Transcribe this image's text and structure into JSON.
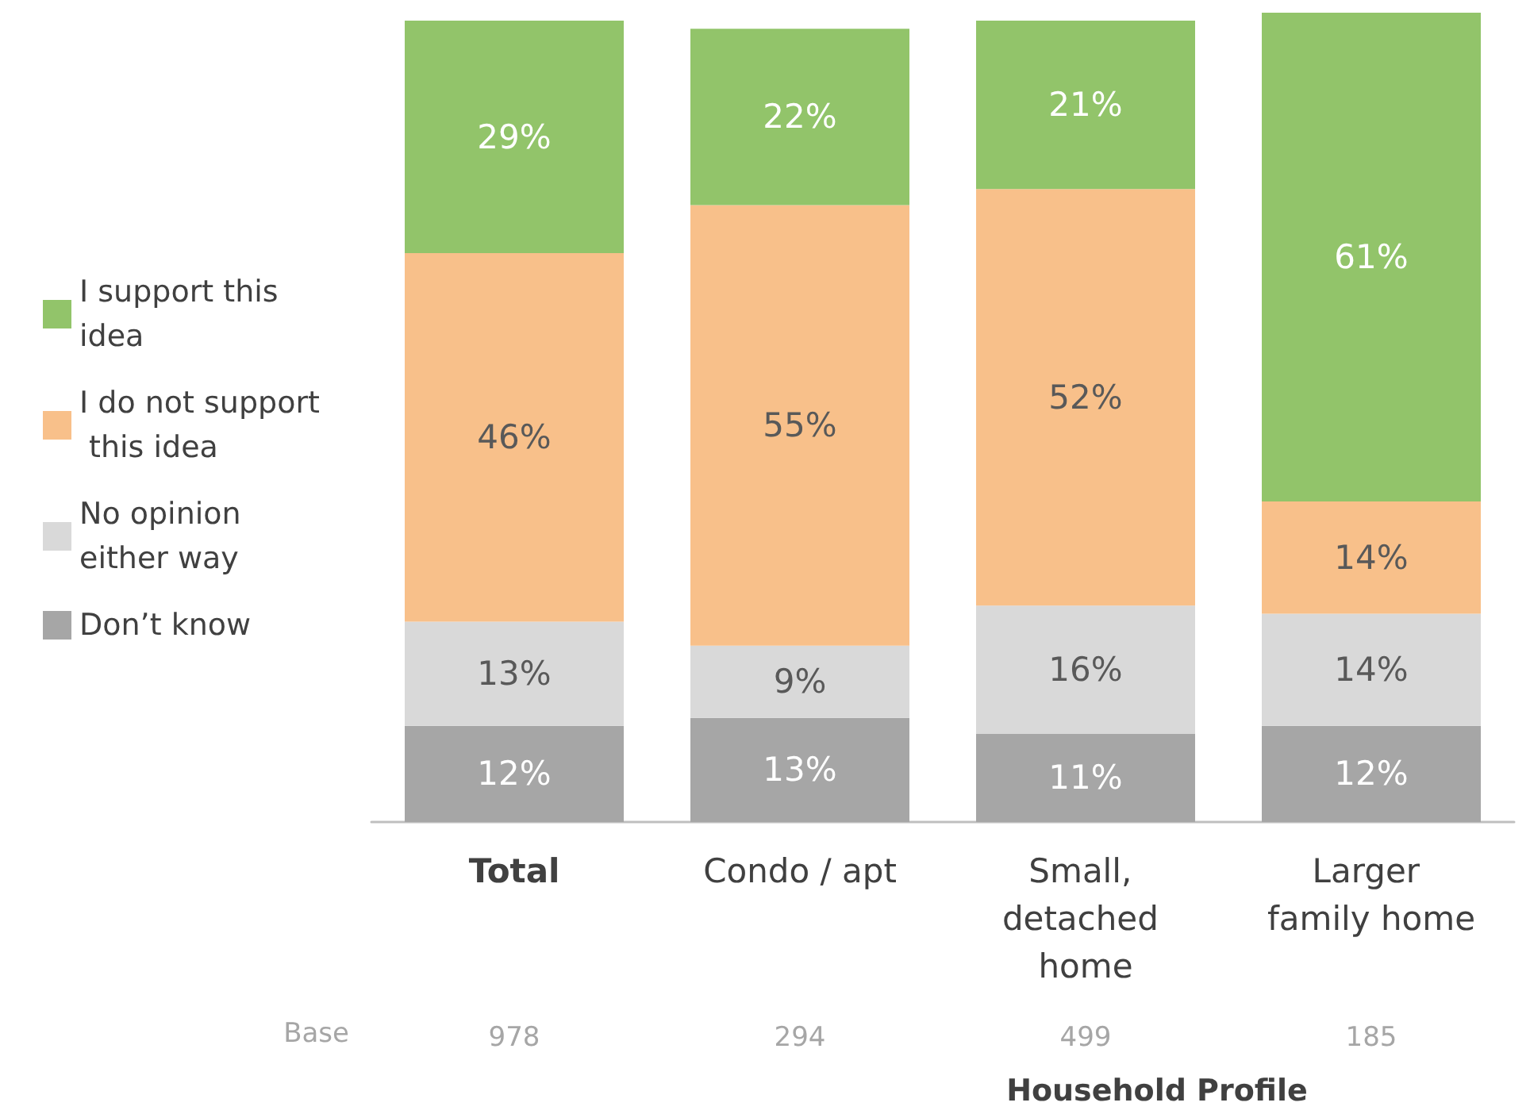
{
  "chart_data": {
    "type": "bar",
    "stacked": true,
    "xlabel": "Household Profile",
    "categories": [
      "Total",
      "Condo / apt",
      "Small, detached home",
      "Larger family home"
    ],
    "series": [
      {
        "name": "Don’t know",
        "color": "#a6a6a6",
        "values": [
          12,
          13,
          11,
          12
        ],
        "value_labels": [
          "12%",
          "13%",
          "11%",
          "12%"
        ]
      },
      {
        "name": "No opinion either way",
        "color": "#d9d9d9",
        "values": [
          13,
          9,
          16,
          14
        ],
        "value_labels": [
          "13%",
          "9%",
          "16%",
          "14%"
        ]
      },
      {
        "name": "I do not support this idea",
        "color": "#f8c08a",
        "values": [
          46,
          55,
          52,
          14
        ],
        "value_labels": [
          "46%",
          "55%",
          "52%",
          "14%"
        ]
      },
      {
        "name": "I support this idea",
        "color": "#92c46a",
        "values": [
          29,
          22,
          21,
          61
        ],
        "value_labels": [
          "29%",
          "22%",
          "21%",
          "61%"
        ]
      }
    ],
    "legend": "left",
    "annotations": [
      "Base",
      "978",
      "294",
      "499",
      "185"
    ]
  }
}
